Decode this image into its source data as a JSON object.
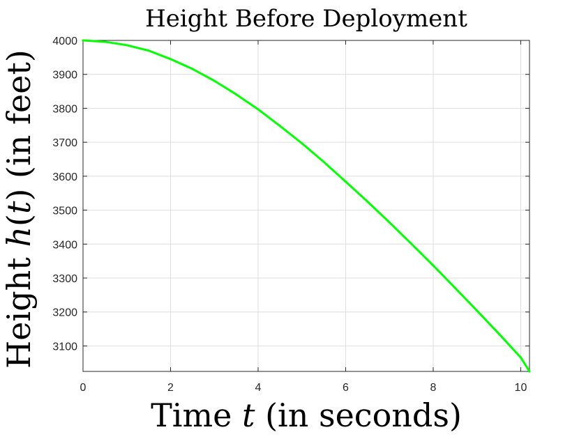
{
  "chart_data": {
    "type": "line",
    "title": "Height Before Deployment",
    "xlabel": {
      "prefix": "Time ",
      "variable": "t",
      "suffix": " (in seconds)"
    },
    "ylabel": {
      "prefix": "Height ",
      "variable": "h",
      "paren_open": "(",
      "argument": "t",
      "paren_close": ")",
      "suffix": " (in feet)"
    },
    "xlim": [
      0,
      10.2
    ],
    "ylim": [
      3025,
      4000
    ],
    "xticks": [
      0,
      2,
      4,
      6,
      8,
      10
    ],
    "yticks": [
      3100,
      3200,
      3300,
      3400,
      3500,
      3600,
      3700,
      3800,
      3900,
      4000
    ],
    "grid": true,
    "line_color": "#00ff00",
    "series": [
      {
        "x": [
          0,
          0.5,
          1,
          1.5,
          2,
          2.5,
          3,
          3.5,
          4,
          4.5,
          5,
          5.5,
          6,
          6.5,
          7,
          7.5,
          8,
          8.5,
          9,
          9.5,
          10,
          10.2
        ],
        "y": [
          4000,
          3996,
          3986,
          3970,
          3945,
          3916,
          3881,
          3841,
          3797,
          3748,
          3697,
          3642,
          3584,
          3525,
          3464,
          3401,
          3337,
          3271,
          3204,
          3136,
          3066,
          3025
        ]
      }
    ]
  }
}
